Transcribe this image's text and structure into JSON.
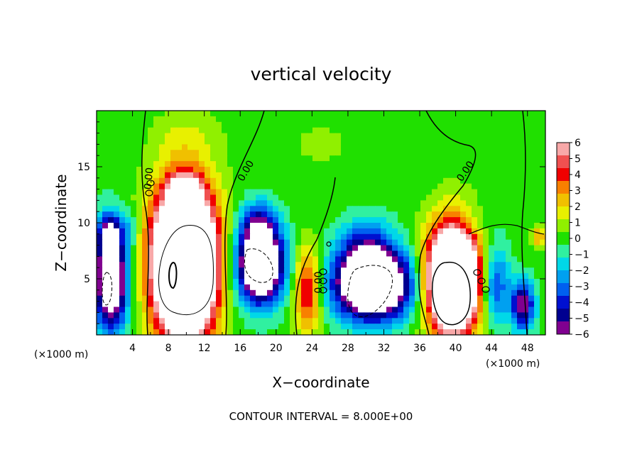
{
  "chart_data": {
    "type": "heatmap",
    "title": "vertical velocity",
    "xlabel": "X−coordinate",
    "ylabel": "Z−coordinate",
    "x_unit_label_left": "(×1000 m)",
    "x_unit_label_right": "(×1000 m)",
    "footer": "CONTOUR INTERVAL = 8.000E+00",
    "xlim": [
      0,
      50
    ],
    "ylim": [
      0,
      20
    ],
    "x_ticks": [
      4,
      8,
      12,
      16,
      20,
      24,
      28,
      32,
      36,
      40,
      44,
      48
    ],
    "x_tick_labels": [
      "4",
      "8",
      "12",
      "16",
      "20",
      "24",
      "28",
      "32",
      "36",
      "40",
      "44",
      "48"
    ],
    "y_ticks": [
      5,
      10,
      15
    ],
    "y_tick_labels": [
      "5",
      "10",
      "15"
    ],
    "contour_labels": [
      "0.00",
      "0.00",
      "0.00",
      "0.00"
    ],
    "colorbar": {
      "range": [
        -6,
        6
      ],
      "tick_labels": [
        "6",
        "5",
        "4",
        "3",
        "2",
        "1",
        "0",
        "−1",
        "−2",
        "−3",
        "−4",
        "−5",
        "−6"
      ],
      "colors": [
        "#f8a8a8",
        "#f05050",
        "#f00000",
        "#f88000",
        "#f0c000",
        "#e8f000",
        "#90f000",
        "#20e000",
        "#30f0a0",
        "#00d8e8",
        "#00a0f0",
        "#0060f0",
        "#0010d0",
        "#000090",
        "#800090"
      ]
    },
    "features": [
      {
        "x": 9.8,
        "z": 6.5,
        "rx": 3.4,
        "rz": 6.5,
        "w": 19
      },
      {
        "x": 9.8,
        "z": 13.3,
        "rx": 1.6,
        "rz": 0.9,
        "w": 4
      },
      {
        "x": 39.7,
        "z": 5.0,
        "rx": 2.8,
        "rz": 4.6,
        "w": 17
      },
      {
        "x": 30.8,
        "z": 4.5,
        "rx": 4.2,
        "rz": 3.0,
        "w": -12
      },
      {
        "x": 30.0,
        "z": 8.0,
        "rx": 3.0,
        "rz": 2.6,
        "w": -3
      },
      {
        "x": 18.2,
        "z": 6.3,
        "rx": 2.6,
        "rz": 3.4,
        "w": -11
      },
      {
        "x": 18.0,
        "z": 10.0,
        "rx": 2.0,
        "rz": 2.0,
        "w": -3
      },
      {
        "x": 1.6,
        "z": 5.0,
        "rx": 1.8,
        "rz": 4.4,
        "w": -10
      },
      {
        "x": 1.4,
        "z": 9.0,
        "rx": 1.0,
        "rz": 1.6,
        "w": -5
      },
      {
        "x": 23.5,
        "z": 4.0,
        "rx": 1.5,
        "rz": 3.8,
        "w": 5
      },
      {
        "x": 44.4,
        "z": 4.5,
        "rx": 1.6,
        "rz": 3.5,
        "w": -4
      },
      {
        "x": 47.5,
        "z": 2.6,
        "rx": 1.3,
        "rz": 2.2,
        "w": -6
      },
      {
        "x": 49.3,
        "z": 8.8,
        "rx": 0.8,
        "rz": 1.0,
        "w": 3
      },
      {
        "x": 3.6,
        "z": 9.5,
        "rx": 1.0,
        "rz": 1.4,
        "w": -2
      },
      {
        "x": 41.5,
        "z": 10.0,
        "rx": 2.5,
        "rz": 1.5,
        "w": -1
      },
      {
        "x": 25.0,
        "z": 17.0,
        "rx": 5.0,
        "rz": 3.0,
        "w": 0.5
      },
      {
        "x": 10.0,
        "z": 18.0,
        "rx": 4.0,
        "rz": 2.0,
        "w": 0.7
      }
    ]
  }
}
